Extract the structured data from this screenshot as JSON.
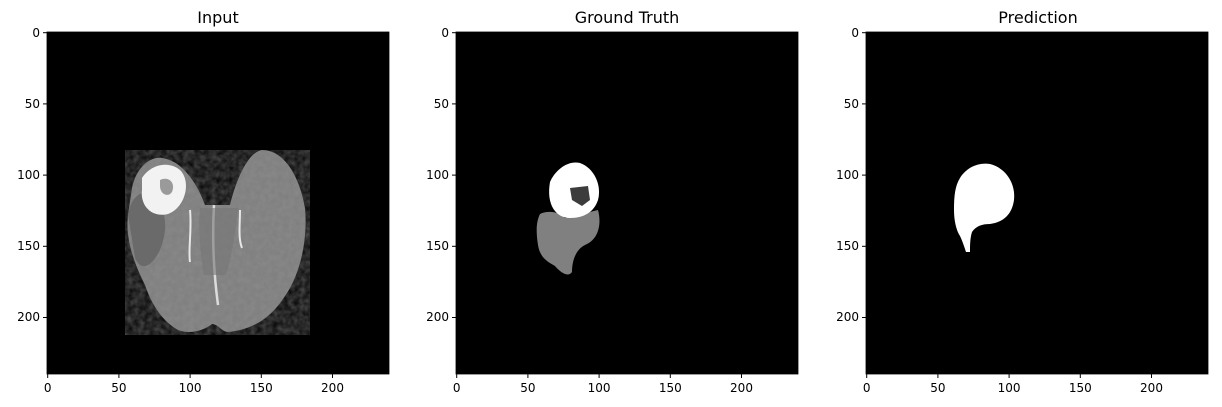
{
  "panels": [
    {
      "title": "Input",
      "content": "brain-mri-slice"
    },
    {
      "title": "Ground Truth",
      "content": "tumor-segmentation-mask"
    },
    {
      "title": "Prediction",
      "content": "predicted-tumor-mask"
    }
  ],
  "axes": {
    "x_ticks": [
      "0",
      "50",
      "100",
      "150",
      "200"
    ],
    "y_ticks": [
      "0",
      "50",
      "100",
      "150",
      "200"
    ],
    "range": [
      0,
      240
    ]
  },
  "colors": {
    "background": "#000000",
    "mask_white": "#ffffff",
    "mask_gray": "#808080",
    "mask_dark": "#3c3c3c"
  }
}
